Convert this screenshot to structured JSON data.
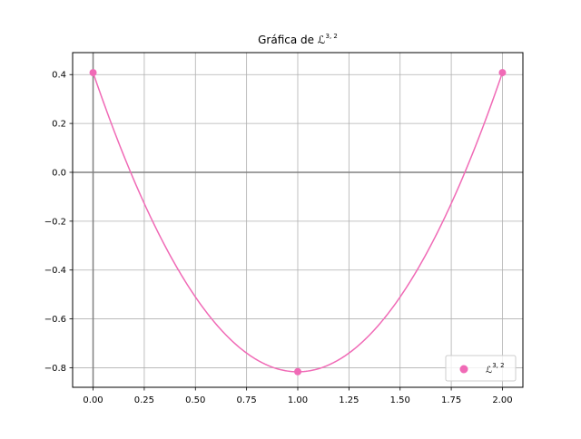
{
  "chart_data": {
    "type": "line",
    "title": {
      "prefix": "Gráfica de ",
      "symbol": "ℒ",
      "superscript": "3, 2"
    },
    "xlabel": "",
    "ylabel": "",
    "xlim": [
      -0.1,
      2.1
    ],
    "ylim": [
      -0.88,
      0.49
    ],
    "xticks": [
      0.0,
      0.25,
      0.5,
      0.75,
      1.0,
      1.25,
      1.5,
      1.75,
      2.0
    ],
    "xtick_labels": [
      "0.00",
      "0.25",
      "0.50",
      "0.75",
      "1.00",
      "1.25",
      "1.50",
      "1.75",
      "2.00"
    ],
    "yticks": [
      0.4,
      0.2,
      0.0,
      -0.2,
      -0.4,
      -0.6,
      -0.8
    ],
    "ytick_labels": [
      "0.4",
      "0.2",
      "0.0",
      "−0.2",
      "−0.4",
      "−0.6",
      "−0.8"
    ],
    "grid": true,
    "reference_lines": {
      "x": 0,
      "y": 0,
      "color": "#808080"
    },
    "curve": {
      "expression": "1.2247*(x-1)^2 - 0.8165",
      "x_range": [
        0,
        2
      ],
      "color": "#f06ab6"
    },
    "series": [
      {
        "name": "ℒ^{3,2}",
        "type": "scatter",
        "color": "#f06ab6",
        "x": [
          0,
          1,
          2
        ],
        "y": [
          0.408,
          -0.816,
          0.408
        ]
      }
    ],
    "legend": {
      "placement": "lower-right",
      "symbol": "ℒ",
      "superscript": "3, 2"
    }
  }
}
